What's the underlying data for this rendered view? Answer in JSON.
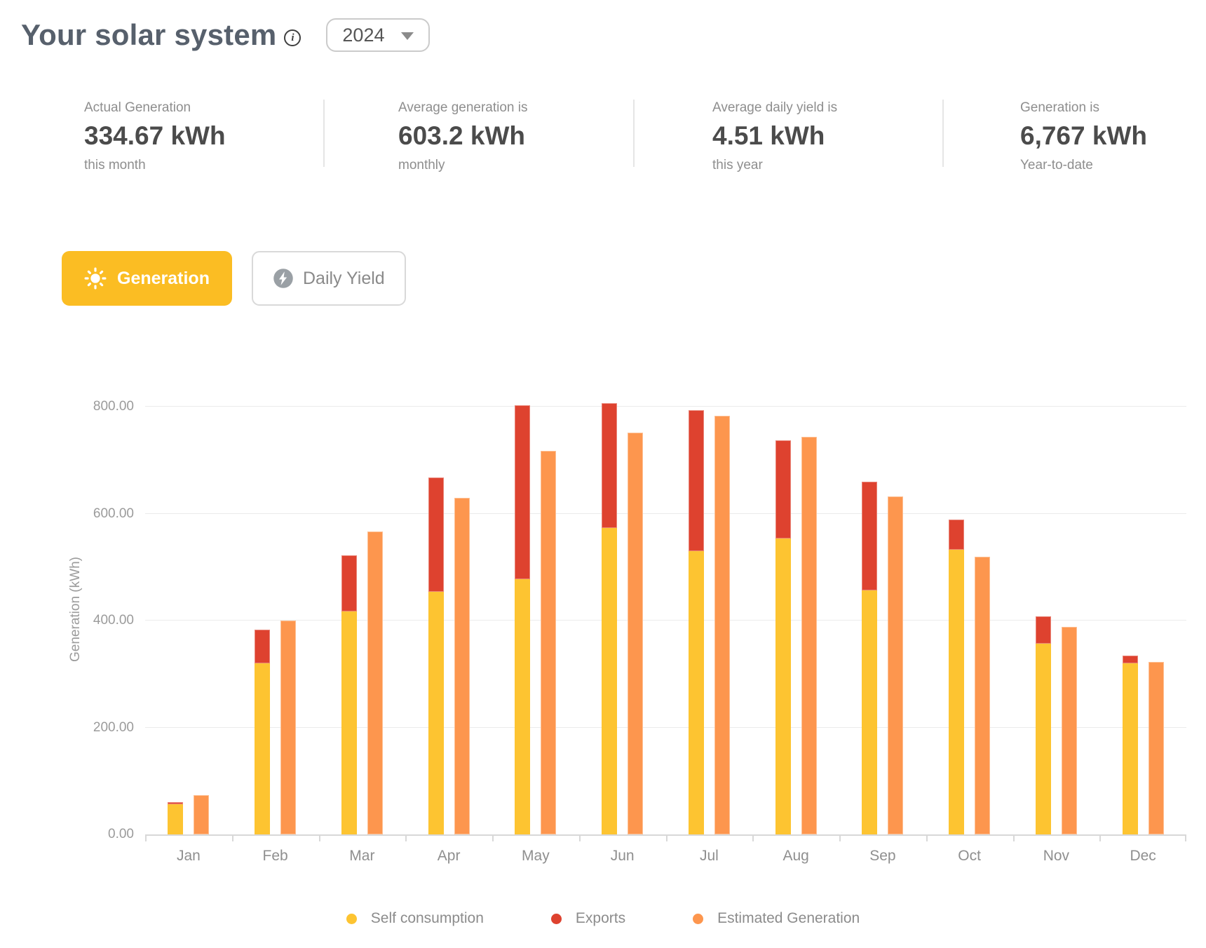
{
  "header": {
    "title": "Your solar system",
    "year_selector": {
      "value": "2024"
    }
  },
  "stats": [
    {
      "label": "Actual Generation",
      "value": "334.67 kWh",
      "period": "this month"
    },
    {
      "label": "Average generation is",
      "value": "603.2 kWh",
      "period": "monthly"
    },
    {
      "label": "Average daily yield is",
      "value": "4.51 kWh",
      "period": "this year"
    },
    {
      "label": "Generation is",
      "value": "6,767 kWh",
      "period": "Year-to-date"
    }
  ],
  "tabs": [
    {
      "label": "Generation",
      "icon": "sun-icon",
      "active": true
    },
    {
      "label": "Daily Yield",
      "icon": "bolt-icon",
      "active": false
    }
  ],
  "chart_data": {
    "type": "bar",
    "title": "",
    "xlabel": "",
    "ylabel": "Generation (kWh)",
    "categories": [
      "Jan",
      "Feb",
      "Mar",
      "Apr",
      "May",
      "Jun",
      "Jul",
      "Aug",
      "Sep",
      "Oct",
      "Nov",
      "Dec"
    ],
    "series": [
      {
        "name": "Self consumption",
        "color": "#FDC431",
        "role": "stacked-bottom",
        "values": [
          57,
          320,
          417,
          454,
          478,
          573,
          530,
          553,
          457,
          532,
          357,
          320
        ]
      },
      {
        "name": "Exports",
        "color": "#DE422F",
        "role": "stacked-top",
        "values": [
          4,
          63,
          105,
          214,
          324,
          234,
          264,
          184,
          203,
          57,
          51,
          14.67
        ]
      },
      {
        "name": "Estimated Generation",
        "color": "#FD964E",
        "role": "separate-bar",
        "values": [
          73,
          400,
          567,
          630,
          717,
          752,
          783,
          743,
          632,
          520,
          388,
          323
        ]
      }
    ],
    "stacked_totals": [
      61,
      383,
      522,
      668,
      802,
      807,
      794,
      737,
      660,
      589,
      408,
      334.67
    ],
    "y_ticks": [
      "0.00",
      "200.00",
      "400.00",
      "600.00",
      "800.00"
    ],
    "ylim": [
      0,
      859
    ],
    "grid": true,
    "legend_position": "bottom"
  },
  "colors": {
    "accent_yellow": "#FBBD23",
    "bar_self": "#FDC431",
    "bar_exports": "#DE422F",
    "bar_estimated": "#FD964E",
    "title_text": "#57606C",
    "gridline": "#ebebeb",
    "axis_text": "#9b9b9b"
  }
}
